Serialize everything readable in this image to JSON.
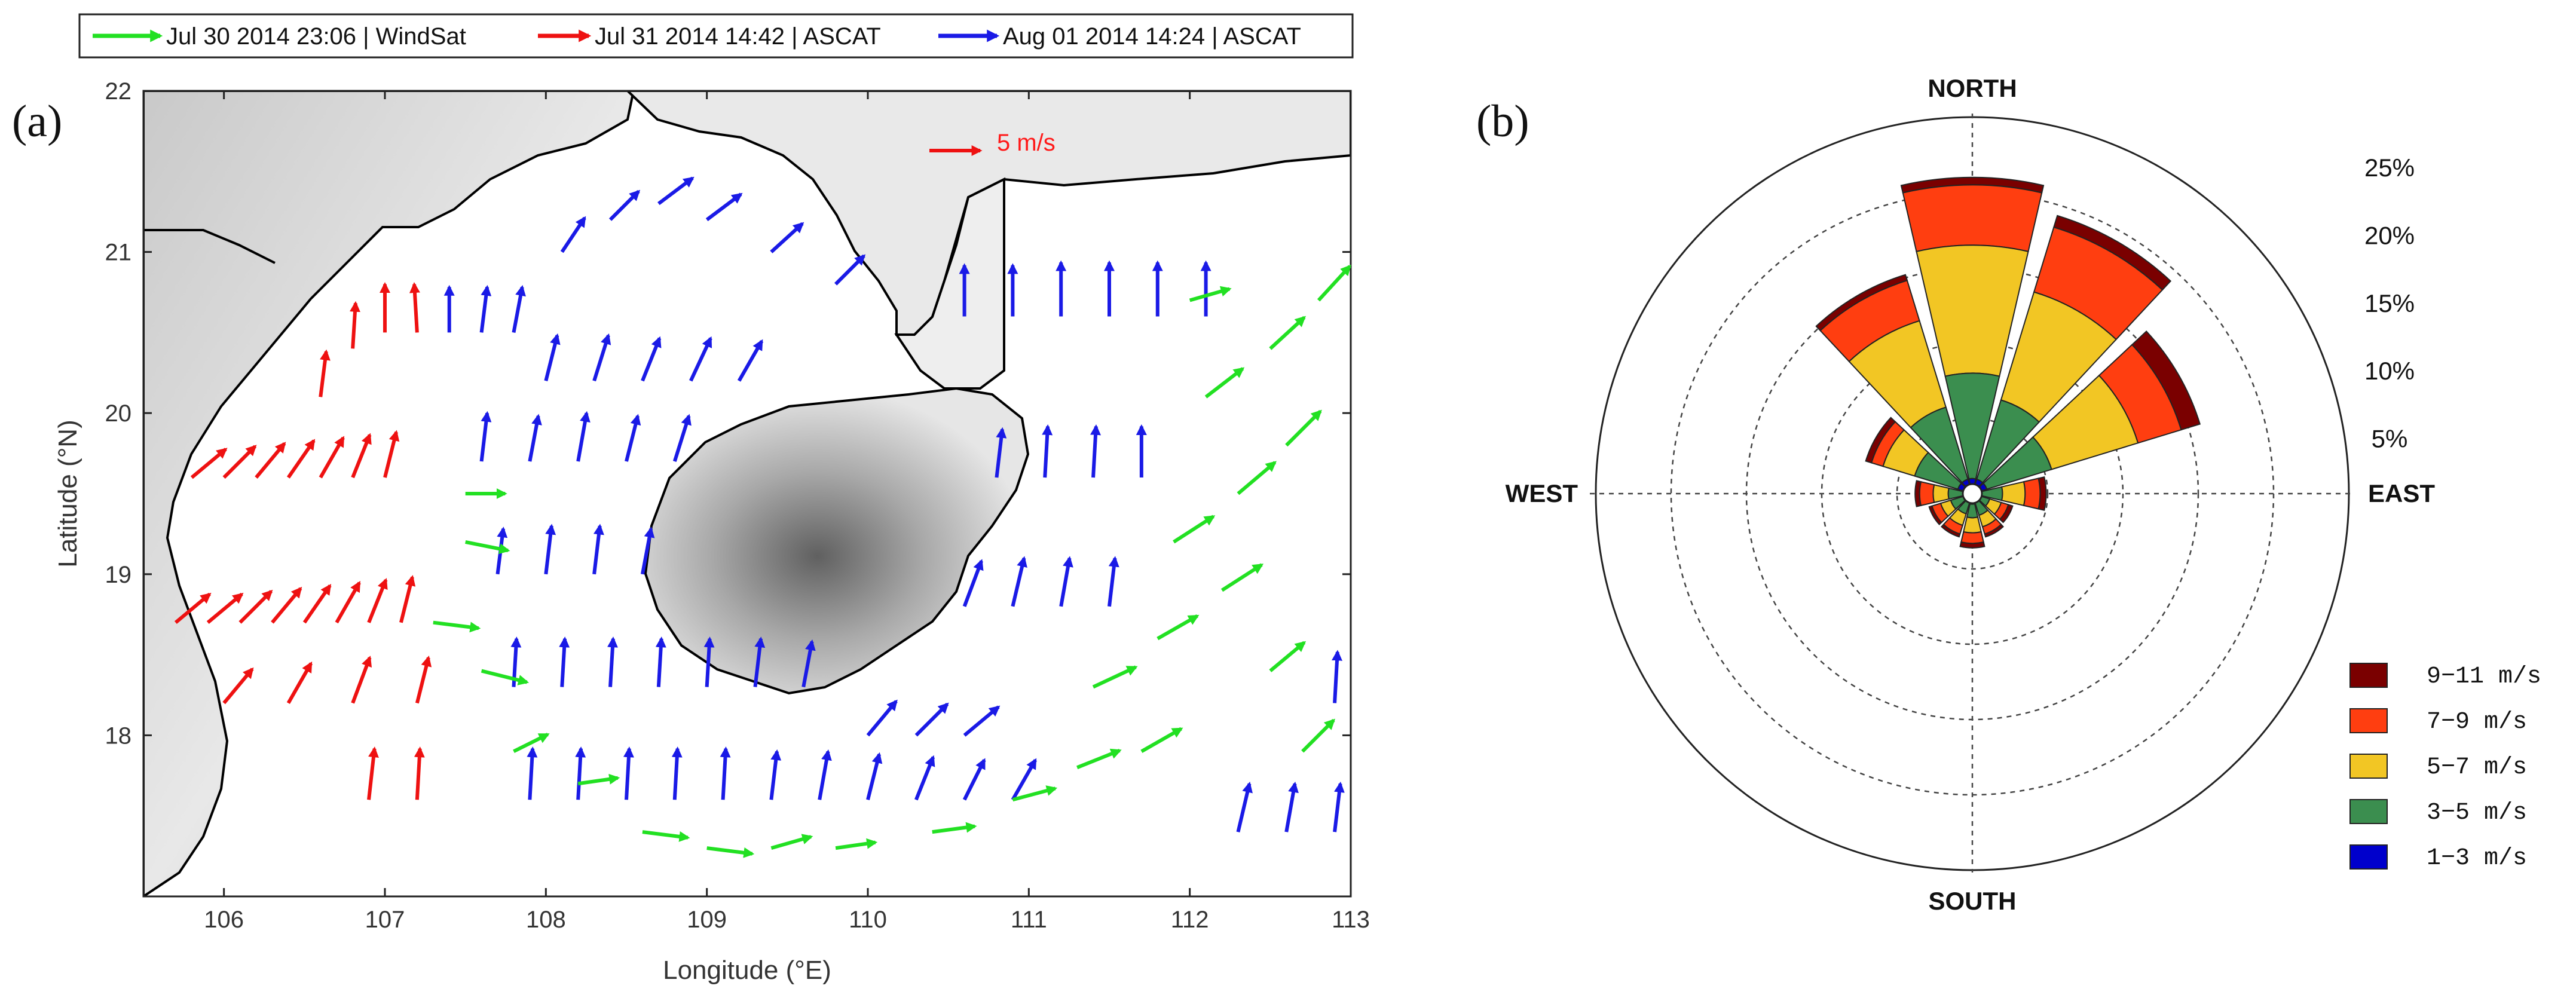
{
  "chart_data": [
    {
      "type": "scatter",
      "subtype": "wind-vector-map",
      "panel_label": "(a)",
      "xlabel": "Longitude (°E)",
      "ylabel": "Latitude (°N)",
      "xlim": [
        105.5,
        113
      ],
      "ylim": [
        17,
        22
      ],
      "xticks": [
        "106",
        "107",
        "108",
        "109",
        "110",
        "111",
        "112",
        "113"
      ],
      "yticks": [
        "18",
        "19",
        "20",
        "21",
        "22"
      ],
      "scale_arrow_label": "5 m/s",
      "legend_position": "top",
      "series": [
        {
          "name": "Jul 30 2014 23:06 | WindSat",
          "color": "#22e022"
        },
        {
          "name": "Jul 31 2014 14:42 | ASCAT",
          "color": "#ee1111"
        },
        {
          "name": "Aug 01 2014 14:24 | ASCAT",
          "color": "#1a1ae6"
        }
      ],
      "vectors": [
        {
          "x": 105.7,
          "y": 18.7,
          "u": 0.6,
          "v": 0.5,
          "s": 1
        },
        {
          "x": 105.9,
          "y": 18.7,
          "u": 0.6,
          "v": 0.5,
          "s": 1
        },
        {
          "x": 106.1,
          "y": 18.7,
          "u": 0.55,
          "v": 0.55,
          "s": 1
        },
        {
          "x": 106.3,
          "y": 18.7,
          "u": 0.5,
          "v": 0.6,
          "s": 1
        },
        {
          "x": 106.5,
          "y": 18.7,
          "u": 0.45,
          "v": 0.65,
          "s": 1
        },
        {
          "x": 106.7,
          "y": 18.7,
          "u": 0.4,
          "v": 0.7,
          "s": 1
        },
        {
          "x": 106.9,
          "y": 18.7,
          "u": 0.3,
          "v": 0.75,
          "s": 1
        },
        {
          "x": 107.1,
          "y": 18.7,
          "u": 0.2,
          "v": 0.8,
          "s": 1
        },
        {
          "x": 105.8,
          "y": 19.6,
          "u": 0.6,
          "v": 0.5,
          "s": 1
        },
        {
          "x": 106.0,
          "y": 19.6,
          "u": 0.55,
          "v": 0.55,
          "s": 1
        },
        {
          "x": 106.2,
          "y": 19.6,
          "u": 0.5,
          "v": 0.6,
          "s": 1
        },
        {
          "x": 106.4,
          "y": 19.6,
          "u": 0.45,
          "v": 0.65,
          "s": 1
        },
        {
          "x": 106.6,
          "y": 19.6,
          "u": 0.4,
          "v": 0.7,
          "s": 1
        },
        {
          "x": 106.8,
          "y": 19.6,
          "u": 0.3,
          "v": 0.75,
          "s": 1
        },
        {
          "x": 107.0,
          "y": 19.6,
          "u": 0.2,
          "v": 0.8,
          "s": 1
        },
        {
          "x": 106.0,
          "y": 18.2,
          "u": 0.5,
          "v": 0.6,
          "s": 1
        },
        {
          "x": 106.4,
          "y": 18.2,
          "u": 0.4,
          "v": 0.7,
          "s": 1
        },
        {
          "x": 106.8,
          "y": 18.2,
          "u": 0.3,
          "v": 0.8,
          "s": 1
        },
        {
          "x": 107.2,
          "y": 18.2,
          "u": 0.2,
          "v": 0.8,
          "s": 1
        },
        {
          "x": 106.9,
          "y": 17.6,
          "u": 0.1,
          "v": 0.9,
          "s": 1
        },
        {
          "x": 107.2,
          "y": 17.6,
          "u": 0.05,
          "v": 0.9,
          "s": 1
        },
        {
          "x": 106.6,
          "y": 20.1,
          "u": 0.1,
          "v": 0.8,
          "s": 1
        },
        {
          "x": 106.8,
          "y": 20.4,
          "u": 0.05,
          "v": 0.8,
          "s": 1
        },
        {
          "x": 107.0,
          "y": 20.5,
          "u": 0.0,
          "v": 0.85,
          "s": 1
        },
        {
          "x": 107.2,
          "y": 20.5,
          "u": -0.05,
          "v": 0.85,
          "s": 1
        },
        {
          "x": 107.4,
          "y": 20.5,
          "u": 0.0,
          "v": 0.8,
          "s": 2
        },
        {
          "x": 107.6,
          "y": 20.5,
          "u": 0.1,
          "v": 0.8,
          "s": 2
        },
        {
          "x": 107.8,
          "y": 20.5,
          "u": 0.15,
          "v": 0.8,
          "s": 2
        },
        {
          "x": 108.1,
          "y": 21.0,
          "u": 0.4,
          "v": 0.6,
          "s": 2
        },
        {
          "x": 108.4,
          "y": 21.2,
          "u": 0.5,
          "v": 0.5,
          "s": 2
        },
        {
          "x": 108.7,
          "y": 21.3,
          "u": 0.6,
          "v": 0.45,
          "s": 2
        },
        {
          "x": 109.0,
          "y": 21.2,
          "u": 0.6,
          "v": 0.45,
          "s": 2
        },
        {
          "x": 109.4,
          "y": 21.0,
          "u": 0.55,
          "v": 0.5,
          "s": 2
        },
        {
          "x": 109.8,
          "y": 20.8,
          "u": 0.5,
          "v": 0.5,
          "s": 2
        },
        {
          "x": 108.0,
          "y": 20.2,
          "u": 0.2,
          "v": 0.8,
          "s": 2
        },
        {
          "x": 108.3,
          "y": 20.2,
          "u": 0.25,
          "v": 0.8,
          "s": 2
        },
        {
          "x": 108.6,
          "y": 20.2,
          "u": 0.3,
          "v": 0.75,
          "s": 2
        },
        {
          "x": 108.9,
          "y": 20.2,
          "u": 0.35,
          "v": 0.75,
          "s": 2
        },
        {
          "x": 109.2,
          "y": 20.2,
          "u": 0.4,
          "v": 0.7,
          "s": 2
        },
        {
          "x": 107.6,
          "y": 19.7,
          "u": 0.1,
          "v": 0.85,
          "s": 2
        },
        {
          "x": 107.9,
          "y": 19.7,
          "u": 0.15,
          "v": 0.8,
          "s": 2
        },
        {
          "x": 108.2,
          "y": 19.7,
          "u": 0.15,
          "v": 0.85,
          "s": 2
        },
        {
          "x": 108.5,
          "y": 19.7,
          "u": 0.2,
          "v": 0.8,
          "s": 2
        },
        {
          "x": 108.8,
          "y": 19.7,
          "u": 0.25,
          "v": 0.8,
          "s": 2
        },
        {
          "x": 107.7,
          "y": 19.0,
          "u": 0.1,
          "v": 0.8,
          "s": 2
        },
        {
          "x": 108.0,
          "y": 19.0,
          "u": 0.1,
          "v": 0.85,
          "s": 2
        },
        {
          "x": 108.3,
          "y": 19.0,
          "u": 0.1,
          "v": 0.85,
          "s": 2
        },
        {
          "x": 108.6,
          "y": 19.0,
          "u": 0.15,
          "v": 0.8,
          "s": 2
        },
        {
          "x": 107.8,
          "y": 18.3,
          "u": 0.05,
          "v": 0.85,
          "s": 2
        },
        {
          "x": 108.1,
          "y": 18.3,
          "u": 0.05,
          "v": 0.85,
          "s": 2
        },
        {
          "x": 108.4,
          "y": 18.3,
          "u": 0.05,
          "v": 0.85,
          "s": 2
        },
        {
          "x": 108.7,
          "y": 18.3,
          "u": 0.05,
          "v": 0.85,
          "s": 2
        },
        {
          "x": 109.0,
          "y": 18.3,
          "u": 0.05,
          "v": 0.85,
          "s": 2
        },
        {
          "x": 109.3,
          "y": 18.3,
          "u": 0.1,
          "v": 0.85,
          "s": 2
        },
        {
          "x": 109.6,
          "y": 18.3,
          "u": 0.15,
          "v": 0.8,
          "s": 2
        },
        {
          "x": 107.9,
          "y": 17.6,
          "u": 0.05,
          "v": 0.9,
          "s": 2
        },
        {
          "x": 108.2,
          "y": 17.6,
          "u": 0.05,
          "v": 0.9,
          "s": 2
        },
        {
          "x": 108.5,
          "y": 17.6,
          "u": 0.05,
          "v": 0.9,
          "s": 2
        },
        {
          "x": 108.8,
          "y": 17.6,
          "u": 0.05,
          "v": 0.9,
          "s": 2
        },
        {
          "x": 109.1,
          "y": 17.6,
          "u": 0.05,
          "v": 0.9,
          "s": 2
        },
        {
          "x": 109.4,
          "y": 17.6,
          "u": 0.1,
          "v": 0.85,
          "s": 2
        },
        {
          "x": 109.7,
          "y": 17.6,
          "u": 0.15,
          "v": 0.85,
          "s": 2
        },
        {
          "x": 110.0,
          "y": 17.6,
          "u": 0.2,
          "v": 0.8,
          "s": 2
        },
        {
          "x": 110.3,
          "y": 17.6,
          "u": 0.3,
          "v": 0.75,
          "s": 2
        },
        {
          "x": 110.6,
          "y": 17.6,
          "u": 0.35,
          "v": 0.7,
          "s": 2
        },
        {
          "x": 110.9,
          "y": 17.6,
          "u": 0.4,
          "v": 0.7,
          "s": 2
        },
        {
          "x": 110.0,
          "y": 18.0,
          "u": 0.5,
          "v": 0.6,
          "s": 2
        },
        {
          "x": 110.3,
          "y": 18.0,
          "u": 0.55,
          "v": 0.55,
          "s": 2
        },
        {
          "x": 110.6,
          "y": 18.0,
          "u": 0.6,
          "v": 0.5,
          "s": 2
        },
        {
          "x": 110.6,
          "y": 18.8,
          "u": 0.3,
          "v": 0.8,
          "s": 2
        },
        {
          "x": 110.9,
          "y": 18.8,
          "u": 0.2,
          "v": 0.85,
          "s": 2
        },
        {
          "x": 111.2,
          "y": 18.8,
          "u": 0.15,
          "v": 0.85,
          "s": 2
        },
        {
          "x": 111.5,
          "y": 18.8,
          "u": 0.1,
          "v": 0.85,
          "s": 2
        },
        {
          "x": 110.8,
          "y": 19.6,
          "u": 0.1,
          "v": 0.85,
          "s": 2
        },
        {
          "x": 111.1,
          "y": 19.6,
          "u": 0.05,
          "v": 0.9,
          "s": 2
        },
        {
          "x": 111.4,
          "y": 19.6,
          "u": 0.05,
          "v": 0.9,
          "s": 2
        },
        {
          "x": 111.7,
          "y": 19.6,
          "u": 0.0,
          "v": 0.9,
          "s": 2
        },
        {
          "x": 110.6,
          "y": 20.6,
          "u": 0.0,
          "v": 0.9,
          "s": 2
        },
        {
          "x": 110.9,
          "y": 20.6,
          "u": 0.0,
          "v": 0.9,
          "s": 2
        },
        {
          "x": 111.2,
          "y": 20.6,
          "u": 0.0,
          "v": 0.95,
          "s": 2
        },
        {
          "x": 111.5,
          "y": 20.6,
          "u": 0.0,
          "v": 0.95,
          "s": 2
        },
        {
          "x": 111.8,
          "y": 20.6,
          "u": 0.0,
          "v": 0.95,
          "s": 2
        },
        {
          "x": 112.1,
          "y": 20.6,
          "u": 0.0,
          "v": 0.95,
          "s": 2
        },
        {
          "x": 112.3,
          "y": 17.4,
          "u": 0.2,
          "v": 0.85,
          "s": 2
        },
        {
          "x": 112.6,
          "y": 17.4,
          "u": 0.15,
          "v": 0.85,
          "s": 2
        },
        {
          "x": 112.9,
          "y": 17.4,
          "u": 0.1,
          "v": 0.85,
          "s": 2
        },
        {
          "x": 112.9,
          "y": 18.2,
          "u": 0.05,
          "v": 0.9,
          "s": 2
        },
        {
          "x": 107.5,
          "y": 19.5,
          "u": 0.7,
          "v": 0.0,
          "s": 0
        },
        {
          "x": 107.5,
          "y": 19.2,
          "u": 0.75,
          "v": -0.15,
          "s": 0
        },
        {
          "x": 107.3,
          "y": 18.7,
          "u": 0.8,
          "v": -0.1,
          "s": 0
        },
        {
          "x": 107.6,
          "y": 18.4,
          "u": 0.8,
          "v": -0.2,
          "s": 0
        },
        {
          "x": 107.8,
          "y": 17.9,
          "u": 0.6,
          "v": 0.3,
          "s": 0
        },
        {
          "x": 108.2,
          "y": 17.7,
          "u": 0.7,
          "v": 0.1,
          "s": 0
        },
        {
          "x": 108.6,
          "y": 17.4,
          "u": 0.8,
          "v": -0.1,
          "s": 0
        },
        {
          "x": 109.0,
          "y": 17.3,
          "u": 0.8,
          "v": -0.1,
          "s": 0
        },
        {
          "x": 109.4,
          "y": 17.3,
          "u": 0.7,
          "v": 0.2,
          "s": 0
        },
        {
          "x": 109.8,
          "y": 17.3,
          "u": 0.7,
          "v": 0.1,
          "s": 0
        },
        {
          "x": 110.4,
          "y": 17.4,
          "u": 0.75,
          "v": 0.1,
          "s": 0
        },
        {
          "x": 110.9,
          "y": 17.6,
          "u": 0.75,
          "v": 0.2,
          "s": 0
        },
        {
          "x": 111.3,
          "y": 17.8,
          "u": 0.75,
          "v": 0.3,
          "s": 0
        },
        {
          "x": 111.7,
          "y": 17.9,
          "u": 0.7,
          "v": 0.4,
          "s": 0
        },
        {
          "x": 111.4,
          "y": 18.3,
          "u": 0.75,
          "v": 0.35,
          "s": 0
        },
        {
          "x": 111.8,
          "y": 18.6,
          "u": 0.7,
          "v": 0.4,
          "s": 0
        },
        {
          "x": 112.2,
          "y": 18.9,
          "u": 0.7,
          "v": 0.45,
          "s": 0
        },
        {
          "x": 111.9,
          "y": 19.2,
          "u": 0.7,
          "v": 0.45,
          "s": 0
        },
        {
          "x": 112.3,
          "y": 19.5,
          "u": 0.65,
          "v": 0.55,
          "s": 0
        },
        {
          "x": 112.6,
          "y": 19.8,
          "u": 0.6,
          "v": 0.6,
          "s": 0
        },
        {
          "x": 112.1,
          "y": 20.1,
          "u": 0.65,
          "v": 0.5,
          "s": 0
        },
        {
          "x": 112.5,
          "y": 20.4,
          "u": 0.6,
          "v": 0.55,
          "s": 0
        },
        {
          "x": 112.8,
          "y": 20.7,
          "u": 0.55,
          "v": 0.6,
          "s": 0
        },
        {
          "x": 112.0,
          "y": 20.7,
          "u": 0.7,
          "v": 0.2,
          "s": 0
        },
        {
          "x": 112.5,
          "y": 18.4,
          "u": 0.6,
          "v": 0.5,
          "s": 0
        },
        {
          "x": 112.7,
          "y": 17.9,
          "u": 0.55,
          "v": 0.55,
          "s": 0
        }
      ]
    },
    {
      "type": "wind-rose",
      "panel_label": "(b)",
      "direction_labels": {
        "n": "NORTH",
        "s": "SOUTH",
        "e": "EAST",
        "w": "WEST"
      },
      "ring_labels": [
        "5%",
        "10%",
        "15%",
        "20%",
        "25%"
      ],
      "rmax": 25,
      "bin_colors": [
        "#0000cc",
        "#3b8e4f",
        "#f2c624",
        "#ff3e10",
        "#7a0000"
      ],
      "legend": [
        "9−11 m/s",
        "7−9 m/s",
        "5−7 m/s",
        "3−5 m/s",
        "1−3 m/s"
      ],
      "legend_colors": [
        "#7a0000",
        "#ff3e10",
        "#f2c624",
        "#3b8e4f",
        "#0000cc"
      ],
      "sectors": [
        {
          "dir": 0,
          "cum": [
            1.0,
            8.0,
            16.5,
            20.5,
            21.0
          ]
        },
        {
          "dir": 30,
          "cum": [
            1.0,
            6.5,
            14.0,
            18.5,
            19.3
          ]
        },
        {
          "dir": 60,
          "cum": [
            1.0,
            5.5,
            11.5,
            14.5,
            15.8
          ]
        },
        {
          "dir": 90,
          "cum": [
            0.6,
            2.0,
            3.5,
            4.5,
            4.9
          ]
        },
        {
          "dir": 120,
          "cum": [
            0.5,
            1.2,
            2.0,
            2.5,
            2.8
          ]
        },
        {
          "dir": 150,
          "cum": [
            0.6,
            1.5,
            2.3,
            2.8,
            3.0
          ]
        },
        {
          "dir": 180,
          "cum": [
            0.7,
            1.6,
            2.6,
            3.3,
            3.6
          ]
        },
        {
          "dir": 210,
          "cum": [
            0.6,
            1.4,
            2.2,
            2.8,
            3.0
          ]
        },
        {
          "dir": 240,
          "cum": [
            0.6,
            1.5,
            2.2,
            2.8,
            3.0
          ]
        },
        {
          "dir": 270,
          "cum": [
            0.6,
            1.6,
            2.6,
            3.5,
            3.8
          ]
        },
        {
          "dir": 300,
          "cum": [
            1.0,
            4.0,
            6.2,
            7.0,
            7.4
          ]
        },
        {
          "dir": 330,
          "cum": [
            1.0,
            6.0,
            12.0,
            14.8,
            15.2
          ]
        }
      ],
      "sector_width_deg": 30
    }
  ]
}
